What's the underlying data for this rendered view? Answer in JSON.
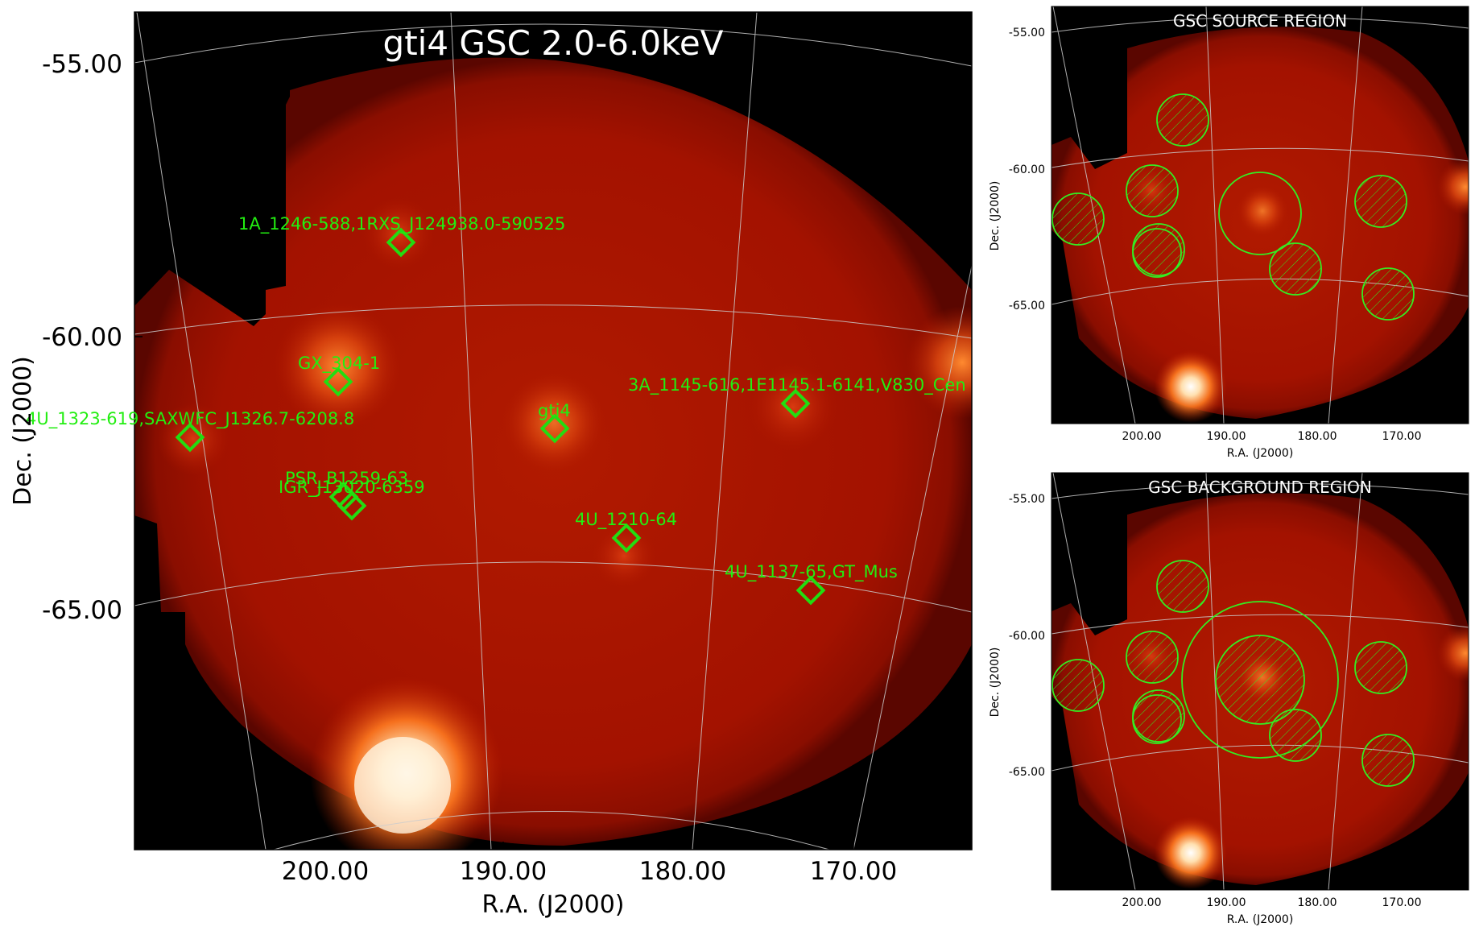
{
  "main_panel": {
    "title": "gti4 GSC 2.0-6.0keV",
    "xlabel": "R.A. (J2000)",
    "ylabel": "Dec. (J2000)",
    "xticks": [
      "200.00",
      "190.00",
      "180.00",
      "170.00"
    ],
    "yticks": [
      "-55.00",
      "-60.00",
      "-65.00"
    ],
    "sources": [
      {
        "label": "1A_1246-588,1RXS_J124938.0-590525"
      },
      {
        "label": "GX_304-1"
      },
      {
        "label": "3A_1145-616,1E1145.1-6141,V830_Cen"
      },
      {
        "label": "4U_1323-619,SAXWFC_J1326.7-6208.8"
      },
      {
        "label": "gti4"
      },
      {
        "label": "PSR_B1259-63"
      },
      {
        "label": "IGR_J13020-6359"
      },
      {
        "label": "4U_1210-64"
      },
      {
        "label": "4U_1137-65,GT_Mus"
      }
    ],
    "marker_color": "#00ff00",
    "grid_color": "#cccccc"
  },
  "source_panel": {
    "title": "GSC SOURCE REGION",
    "xlabel": "R.A. (J2000)",
    "ylabel": "Dec. (J2000)",
    "xticks": [
      "200.00",
      "190.00",
      "180.00",
      "170.00"
    ],
    "yticks": [
      "-55.00",
      "-60.00",
      "-65.00"
    ]
  },
  "background_panel": {
    "title": "GSC BACKGROUND REGION",
    "xlabel": "R.A. (J2000)",
    "ylabel": "Dec. (J2000)",
    "xticks": [
      "200.00",
      "190.00",
      "180.00",
      "170.00"
    ],
    "yticks": [
      "-55.00",
      "-60.00",
      "-65.00"
    ]
  },
  "colors": {
    "background": "#000000",
    "sky": "#a01000",
    "bright": "#fff0d0",
    "region": "#33ee22"
  }
}
